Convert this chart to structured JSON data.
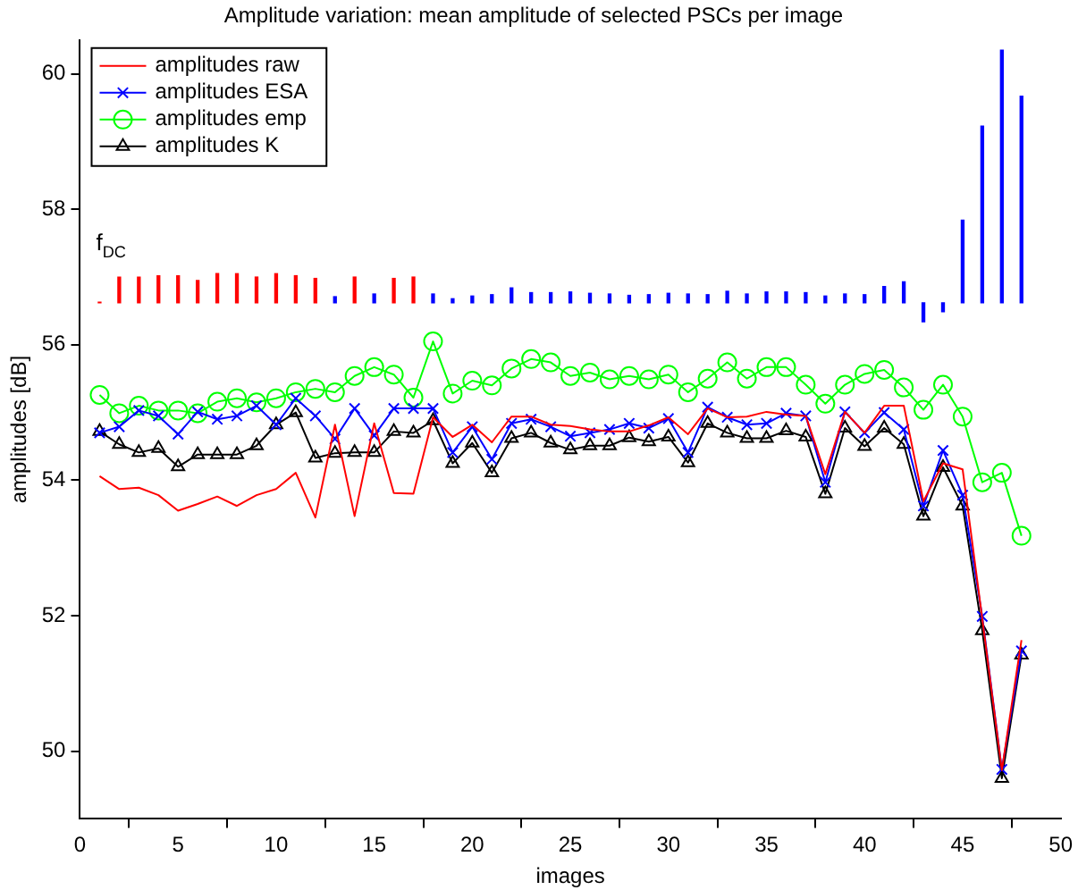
{
  "chart_data": {
    "type": "line",
    "title": "Amplitude variation: mean amplitude of selected PSCs per image",
    "xlabel": "images",
    "ylabel": "amplitudes [dB]",
    "x": [
      1,
      2,
      3,
      4,
      5,
      6,
      7,
      8,
      9,
      10,
      11,
      12,
      13,
      14,
      15,
      16,
      17,
      18,
      19,
      20,
      21,
      22,
      23,
      24,
      25,
      26,
      27,
      28,
      29,
      30,
      31,
      32,
      33,
      34,
      35,
      36,
      37,
      38,
      39,
      40,
      41,
      42,
      43,
      44,
      45,
      46,
      47,
      48
    ],
    "xlim": [
      0,
      50
    ],
    "xticks": [
      0,
      5,
      10,
      15,
      20,
      25,
      30,
      35,
      40,
      45,
      50
    ],
    "ylim": [
      49,
      60.5
    ],
    "yticks": [
      50,
      52,
      54,
      56,
      58,
      60
    ],
    "grid": false,
    "legend": "top left",
    "annotations": [
      "f$_{DC}$"
    ],
    "series": [
      {
        "name": "amplitudes raw",
        "color": "#ff0000",
        "marker": "none",
        "values": [
          54.06,
          53.87,
          53.89,
          53.78,
          53.55,
          53.65,
          53.76,
          53.62,
          53.78,
          53.87,
          54.11,
          53.45,
          54.82,
          53.47,
          54.84,
          53.81,
          53.8,
          54.93,
          54.64,
          54.82,
          54.56,
          54.94,
          54.94,
          54.82,
          54.8,
          54.75,
          54.72,
          54.72,
          54.81,
          54.93,
          54.68,
          55.06,
          54.93,
          54.94,
          55.01,
          54.97,
          54.95,
          54.09,
          55.01,
          54.7,
          55.1,
          55.1,
          53.69,
          54.25,
          54.16,
          51.96,
          49.72,
          51.64
        ]
      },
      {
        "name": "amplitudes ESA",
        "color": "#0000ff",
        "marker": "cross",
        "values": [
          54.7,
          54.79,
          55.03,
          54.95,
          54.68,
          55.01,
          54.9,
          54.95,
          55.1,
          54.82,
          55.21,
          54.95,
          54.61,
          55.06,
          54.66,
          55.06,
          55.06,
          55.06,
          54.41,
          54.79,
          54.31,
          54.84,
          54.9,
          54.79,
          54.65,
          54.7,
          54.75,
          54.84,
          54.77,
          54.91,
          54.41,
          55.08,
          54.93,
          54.82,
          54.84,
          54.99,
          54.95,
          53.97,
          55.01,
          54.7,
          55.0,
          54.75,
          53.62,
          54.44,
          53.78,
          51.99,
          49.73,
          51.48
        ]
      },
      {
        "name": "amplitudes emp",
        "color": "#00ff00",
        "marker": "circle",
        "values": [
          55.26,
          54.99,
          55.1,
          55.03,
          55.03,
          54.99,
          55.16,
          55.21,
          55.15,
          55.21,
          55.3,
          55.35,
          55.3,
          55.54,
          55.67,
          55.56,
          55.22,
          56.05,
          55.28,
          55.47,
          55.4,
          55.65,
          55.79,
          55.74,
          55.54,
          55.59,
          55.49,
          55.54,
          55.49,
          55.56,
          55.3,
          55.5,
          55.74,
          55.5,
          55.67,
          55.67,
          55.41,
          55.13,
          55.41,
          55.57,
          55.63,
          55.37,
          55.04,
          55.41,
          54.94,
          53.97,
          54.11,
          53.18
        ]
      },
      {
        "name": "amplitudes K",
        "color": "#000000",
        "marker": "triangle",
        "values": [
          54.72,
          54.53,
          54.41,
          54.47,
          54.2,
          54.38,
          54.38,
          54.38,
          54.51,
          54.82,
          55.0,
          54.33,
          54.4,
          54.41,
          54.41,
          54.72,
          54.7,
          54.88,
          54.25,
          54.55,
          54.11,
          54.62,
          54.7,
          54.55,
          54.45,
          54.51,
          54.51,
          54.63,
          54.57,
          54.64,
          54.26,
          54.84,
          54.7,
          54.62,
          54.62,
          54.73,
          54.64,
          53.8,
          54.77,
          54.5,
          54.77,
          54.53,
          53.47,
          54.19,
          53.62,
          51.78,
          49.6,
          51.42
        ]
      },
      {
        "type": "bar",
        "colors": [
          "#ff0000",
          "#ff0000",
          "#ff0000",
          "#ff0000",
          "#ff0000",
          "#ff0000",
          "#ff0000",
          "#ff0000",
          "#ff0000",
          "#ff0000",
          "#ff0000",
          "#ff0000",
          "#0000ff",
          "#ff0000",
          "#0000ff",
          "#ff0000",
          "#ff0000",
          "#0000ff",
          "#0000ff",
          "#0000ff",
          "#0000ff",
          "#0000ff",
          "#0000ff",
          "#0000ff",
          "#0000ff",
          "#0000ff",
          "#0000ff",
          "#0000ff",
          "#0000ff",
          "#0000ff",
          "#0000ff",
          "#0000ff",
          "#0000ff",
          "#0000ff",
          "#0000ff",
          "#0000ff",
          "#0000ff",
          "#0000ff",
          "#0000ff",
          "#0000ff",
          "#0000ff",
          "#0000ff",
          "#0000ff",
          "#0000ff",
          "#0000ff",
          "#0000ff",
          "#0000ff",
          "#0000ff"
        ],
        "base": [
          56.62,
          56.62,
          56.62,
          56.62,
          56.62,
          56.62,
          56.62,
          56.62,
          56.62,
          56.62,
          56.62,
          56.62,
          56.62,
          56.62,
          56.62,
          56.62,
          56.62,
          56.62,
          56.62,
          56.62,
          56.62,
          56.62,
          56.62,
          56.62,
          56.62,
          56.62,
          56.62,
          56.62,
          56.62,
          56.62,
          56.62,
          56.62,
          56.62,
          56.62,
          56.62,
          56.62,
          56.62,
          56.62,
          56.62,
          56.62,
          56.62,
          56.62,
          56.62,
          56.62,
          56.62,
          56.62,
          56.62,
          56.62
        ],
        "values": [
          0.01,
          0.38,
          0.38,
          0.4,
          0.4,
          0.33,
          0.43,
          0.43,
          0.38,
          0.43,
          0.4,
          0.36,
          0.09,
          0.38,
          0.13,
          0.36,
          0.38,
          0.13,
          0.06,
          0.1,
          0.12,
          0.22,
          0.15,
          0.15,
          0.16,
          0.14,
          0.13,
          0.11,
          0.12,
          0.14,
          0.13,
          0.12,
          0.17,
          0.13,
          0.16,
          0.16,
          0.15,
          0.1,
          0.13,
          0.12,
          0.24,
          0.31,
          -0.28,
          -0.13,
          1.22,
          2.61,
          3.73,
          3.05
        ]
      }
    ]
  }
}
